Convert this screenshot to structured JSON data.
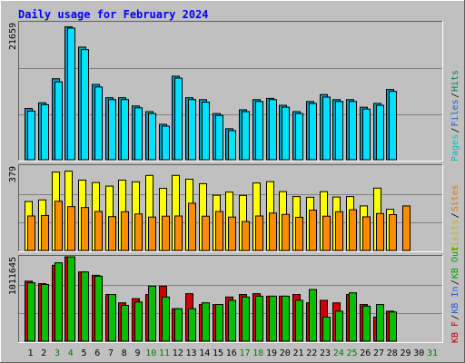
{
  "chart_data": {
    "type": "bar",
    "title": "Daily usage for February 2024",
    "categories": [
      "1",
      "2",
      "3",
      "4",
      "5",
      "6",
      "7",
      "8",
      "9",
      "10",
      "11",
      "12",
      "13",
      "14",
      "15",
      "16",
      "17",
      "18",
      "19",
      "20",
      "21",
      "22",
      "23",
      "24",
      "25",
      "26",
      "27",
      "28",
      "29",
      "30",
      "31"
    ],
    "weekend_days": [
      3,
      4,
      10,
      11,
      17,
      18,
      24,
      25,
      31
    ],
    "panels": [
      {
        "id": "top",
        "max_label": "21659",
        "ylim": [
          0,
          21659
        ],
        "legend": [
          {
            "label": "Pages",
            "color": "#00c0c0"
          },
          {
            "label": "Files",
            "color": "#2060d0"
          },
          {
            "label": "Hits",
            "color": "#008060"
          }
        ],
        "series": [
          {
            "name": "Hits",
            "color": "#00a0c0",
            "values": [
              8100,
              9000,
              12800,
              21000,
              17800,
              11900,
              9800,
              9800,
              8500,
              7600,
              5600,
              13200,
              9800,
              9500,
              7300,
              4900,
              7900,
              9500,
              9700,
              8600,
              7600,
              9200,
              10300,
              9500,
              9500,
              8300,
              8900,
              11100,
              null
            ]
          },
          {
            "name": "Files",
            "color": "#00e0ff",
            "values": [
              7700,
              8700,
              12300,
              20800,
              17400,
              11500,
              9500,
              9500,
              8200,
              7300,
              5300,
              12900,
              9500,
              9100,
              7000,
              4600,
              7600,
              9200,
              9500,
              8300,
              7300,
              8900,
              9900,
              9200,
              9200,
              8000,
              8600,
              10800,
              null
            ]
          }
        ]
      },
      {
        "id": "mid",
        "max_label": "379",
        "ylim": [
          0,
          379
        ],
        "legend": [
          {
            "label": "Visits",
            "color": "#c8b400"
          },
          {
            "label": "Sites",
            "color": "#e07800"
          }
        ],
        "series": [
          {
            "name": "Visits",
            "color": "#ffff00",
            "values": [
              220,
              227,
              352,
              356,
              316,
              305,
              289,
              316,
              308,
              337,
              279,
              337,
              320,
              300,
              248,
              262,
              247,
              303,
              309,
              264,
              242,
              239,
              264,
              240,
              242,
              200,
              280,
              185,
              null
            ]
          },
          {
            "name": "Sites",
            "color": "#ff8c00",
            "values": [
              155,
              157,
              221,
              197,
              193,
              175,
              152,
              174,
              164,
              150,
              154,
              155,
              212,
              154,
              175,
              150,
              130,
              155,
              168,
              162,
              149,
              181,
              154,
              174,
              183,
              151,
              166,
              161,
              200
            ]
          }
        ]
      },
      {
        "id": "bottom",
        "max_label": "1011645",
        "ylim": [
          0,
          1011645
        ],
        "legend": [
          {
            "label": "KB F",
            "color": "#c00000"
          },
          {
            "label": "KB In",
            "color": "#2060d0"
          },
          {
            "label": "KB Out",
            "color": "#00a000"
          }
        ],
        "series": [
          {
            "name": "KB F",
            "color": "#d00000",
            "values": [
              720000,
              690000,
              910000,
              1011645,
              830000,
              790000,
              560000,
              460000,
              510000,
              560000,
              660000,
              390000,
              570000,
              440000,
              440000,
              530000,
              560000,
              570000,
              540000,
              540000,
              560000,
              460000,
              490000,
              460000,
              560000,
              440000,
              290000,
              360000,
              null
            ]
          },
          {
            "name": "KB Out",
            "color": "#00c000",
            "values": [
              700000,
              680000,
              940000,
              1011645,
              830000,
              780000,
              560000,
              430000,
              470000,
              660000,
              530000,
              390000,
              390000,
              460000,
              440000,
              490000,
              530000,
              540000,
              540000,
              540000,
              490000,
              620000,
              290000,
              360000,
              580000,
              420000,
              440000,
              350000,
              null
            ]
          }
        ]
      }
    ]
  }
}
